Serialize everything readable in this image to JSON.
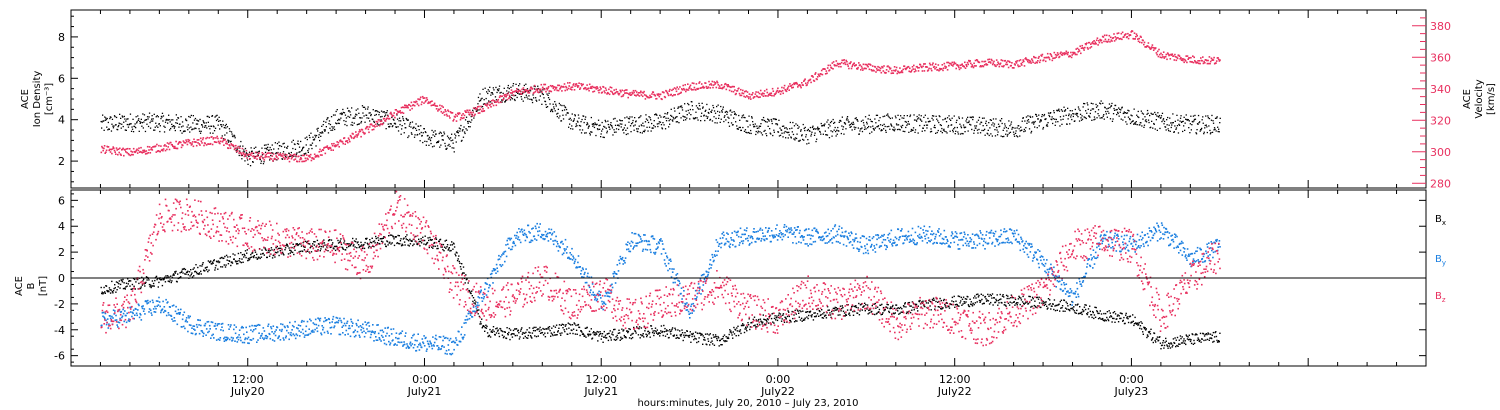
{
  "chart_data": [
    {
      "type": "scatter",
      "panel": "top",
      "ylabel_left": [
        "ACE",
        "Ion Density",
        "[cm⁻³]"
      ],
      "ylabel_right": [
        "ACE",
        "Velocity",
        "[km/s]"
      ],
      "ylim_left": [
        0.7,
        9.3
      ],
      "yticks_left": [
        2,
        4,
        6,
        8
      ],
      "ylim_right": [
        277,
        390
      ],
      "yticks_right": [
        280,
        300,
        320,
        340,
        360,
        380
      ],
      "colors": {
        "density": "#000000",
        "velocity": "#e8305f"
      },
      "series": [
        {
          "name": "Ion Density",
          "axis": "left",
          "color": "#000000",
          "hours": [
            0,
            2,
            4,
            6,
            8,
            10,
            12,
            14,
            16,
            18,
            20,
            22,
            24,
            26,
            28,
            30,
            32,
            34,
            36,
            38,
            40,
            42,
            44,
            46,
            48,
            50,
            52,
            54,
            56,
            58,
            60,
            62,
            64,
            66,
            68,
            70,
            72,
            74,
            76
          ],
          "values": [
            3.8,
            3.9,
            3.9,
            3.8,
            3.8,
            2.2,
            2.5,
            2.8,
            4.1,
            4.3,
            3.9,
            3.2,
            2.9,
            5.2,
            5.4,
            5.2,
            3.9,
            3.6,
            3.8,
            3.9,
            4.5,
            4.3,
            3.8,
            3.6,
            3.3,
            3.7,
            3.8,
            3.9,
            3.8,
            3.8,
            3.7,
            3.6,
            4.0,
            4.3,
            4.5,
            4.2,
            3.9,
            3.8,
            3.8
          ],
          "spread": 0.45
        },
        {
          "name": "Velocity",
          "axis": "right",
          "color": "#e8305f",
          "hours": [
            0,
            2,
            4,
            6,
            8,
            10,
            12,
            14,
            16,
            18,
            20,
            22,
            24,
            26,
            28,
            30,
            32,
            34,
            36,
            38,
            40,
            42,
            44,
            46,
            48,
            50,
            52,
            54,
            56,
            58,
            60,
            62,
            64,
            66,
            68,
            70,
            72,
            74,
            76
          ],
          "values": [
            302,
            300,
            303,
            306,
            308,
            298,
            297,
            296,
            305,
            314,
            325,
            334,
            322,
            328,
            338,
            341,
            342,
            340,
            337,
            336,
            342,
            343,
            336,
            339,
            345,
            357,
            354,
            352,
            354,
            355,
            357,
            356,
            360,
            363,
            372,
            375,
            362,
            359,
            358
          ],
          "spread": 2.5
        }
      ]
    },
    {
      "type": "scatter",
      "panel": "bottom",
      "ylabel_left": [
        "ACE",
        "B",
        "[nT]"
      ],
      "ylim": [
        -6.8,
        6.8
      ],
      "yticks": [
        -6,
        -4,
        -2,
        0,
        2,
        4,
        6
      ],
      "zero_line": true,
      "legend": [
        {
          "label": "B",
          "sub": "x",
          "color": "#000000"
        },
        {
          "label": "B",
          "sub": "y",
          "color": "#1b7fe0"
        },
        {
          "label": "B",
          "sub": "z",
          "color": "#e8305f"
        }
      ],
      "series": [
        {
          "name": "Bx",
          "color": "#000000",
          "hours": [
            0,
            2,
            4,
            6,
            8,
            10,
            12,
            14,
            16,
            18,
            20,
            22,
            24,
            26,
            28,
            30,
            32,
            34,
            36,
            38,
            40,
            42,
            44,
            46,
            48,
            50,
            52,
            54,
            56,
            58,
            60,
            62,
            64,
            66,
            68,
            70,
            72,
            74,
            76
          ],
          "values": [
            -0.8,
            -0.4,
            -0.2,
            0.5,
            1.2,
            1.8,
            2.1,
            2.5,
            2.6,
            2.8,
            3.0,
            2.9,
            2.4,
            -4.0,
            -4.3,
            -4.1,
            -3.8,
            -4.5,
            -4.2,
            -4.0,
            -4.5,
            -4.8,
            -3.5,
            -3.0,
            -2.8,
            -2.5,
            -2.3,
            -2.4,
            -2.0,
            -1.8,
            -1.6,
            -1.7,
            -1.9,
            -2.2,
            -2.8,
            -3.2,
            -5.0,
            -4.7,
            -4.5
          ],
          "spread": 0.45
        },
        {
          "name": "By",
          "color": "#1b7fe0",
          "hours": [
            0,
            2,
            4,
            6,
            8,
            10,
            12,
            14,
            16,
            18,
            20,
            22,
            24,
            26,
            28,
            30,
            32,
            34,
            36,
            38,
            40,
            42,
            44,
            46,
            48,
            50,
            52,
            54,
            56,
            58,
            60,
            62,
            64,
            66,
            68,
            70,
            72,
            74,
            76
          ],
          "values": [
            -3.3,
            -2.8,
            -2.0,
            -3.5,
            -4.1,
            -4.3,
            -4.1,
            -3.8,
            -3.6,
            -4.0,
            -4.6,
            -5.0,
            -5.2,
            -1.0,
            3.2,
            3.7,
            2.0,
            -2.0,
            3.0,
            2.5,
            -2.5,
            3.0,
            3.3,
            3.6,
            3.2,
            3.5,
            2.5,
            3.2,
            3.4,
            3.0,
            3.0,
            3.3,
            1.2,
            -1.5,
            3.0,
            2.6,
            3.8,
            1.5,
            2.5
          ],
          "spread": 0.7
        },
        {
          "name": "Bz",
          "color": "#e8305f",
          "hours": [
            0,
            2,
            4,
            6,
            8,
            10,
            12,
            14,
            16,
            18,
            20,
            22,
            24,
            26,
            28,
            30,
            32,
            34,
            36,
            38,
            40,
            42,
            44,
            46,
            48,
            50,
            52,
            54,
            56,
            58,
            60,
            62,
            64,
            66,
            68,
            70,
            72,
            74,
            76
          ],
          "values": [
            -3.0,
            -2.5,
            4.8,
            5.0,
            4.2,
            3.5,
            3.0,
            2.6,
            2.5,
            1.0,
            5.5,
            3.5,
            -0.5,
            -2.0,
            -1.5,
            0.0,
            -2.0,
            -1.0,
            -3.0,
            -2.0,
            -1.5,
            -0.5,
            -2.5,
            -3.0,
            -1.0,
            -2.0,
            -1.0,
            -3.5,
            -2.5,
            -3.0,
            -4.0,
            -2.5,
            -1.0,
            2.5,
            3.0,
            2.5,
            -3.0,
            0.0,
            2.0
          ],
          "spread": 1.3
        }
      ]
    }
  ],
  "x_axis": {
    "range_hours": [
      -2,
      90
    ],
    "labeled_ticks": [
      {
        "hour": 10,
        "time": "12:00",
        "day": "July20"
      },
      {
        "hour": 22,
        "time": "0:00",
        "day": "July21"
      },
      {
        "hour": 34,
        "time": "12:00",
        "day": "July21"
      },
      {
        "hour": 46,
        "time": "0:00",
        "day": "July22"
      },
      {
        "hour": 58,
        "time": "12:00",
        "day": "July22"
      },
      {
        "hour": 70,
        "time": "0:00",
        "day": "July23"
      }
    ],
    "label": "hours:minutes, July 20, 2010 – July 23, 2010"
  }
}
